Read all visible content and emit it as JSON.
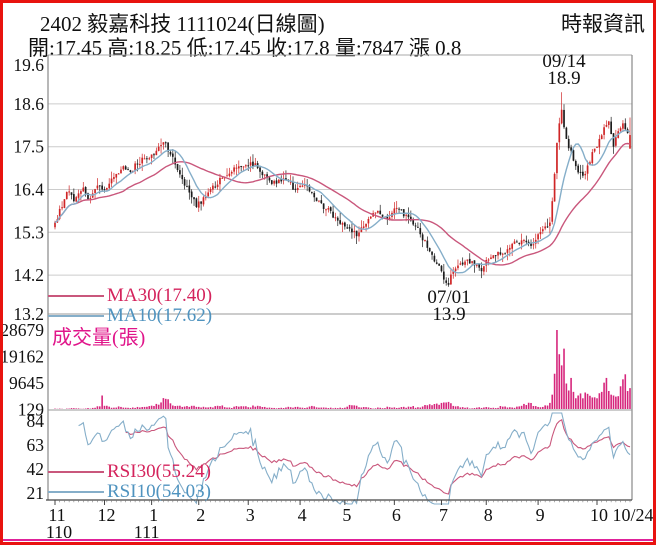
{
  "header": {
    "title": "2402 毅嘉科技 1111024(日線圖)",
    "source": "時報資訊",
    "ohlc_line": "開:17.45 高:18.25 低:17.45 收:17.8 量:7847 漲 0.8"
  },
  "legends": {
    "ma30": "MA30(17.40)",
    "ma10": "MA10(17.62)",
    "volume_title": "成交量(張)",
    "rsi30": "RSI30(55.24)",
    "rsi10": "RSI10(54.03)"
  },
  "annotations": {
    "high": {
      "date": "09/14",
      "value": "18.9"
    },
    "low": {
      "date": "07/01",
      "value": "13.9"
    }
  },
  "colors": {
    "up": "#cf2526",
    "down": "#1c1c1c",
    "ma30_line": "#c9577c",
    "ma10_line": "#85aec9",
    "volume_bar": "#d6267c",
    "pink_text": "#d4235c",
    "blue_text": "#4f93bf",
    "magenta_text": "#e0158a",
    "border": "#e8130f",
    "axis": "#888888",
    "grid": "#cccccc",
    "bottom_accent": "#e0219a"
  },
  "chart_data": {
    "type": "candlestick",
    "panels": [
      "price",
      "volume",
      "rsi"
    ],
    "title": "2402 毅嘉科技 1111024(日線圖)",
    "ohlc": {
      "open": 17.45,
      "high": 18.25,
      "low": 17.45,
      "close": 17.8,
      "volume": 7847,
      "change": 0.8
    },
    "price_axis_ticks": [
      "19.6",
      "18.6",
      "17.5",
      "16.4",
      "15.3",
      "14.2",
      "13.2"
    ],
    "price_range": [
      13.2,
      19.6
    ],
    "volume_axis_ticks": [
      28679,
      19162,
      9645,
      129
    ],
    "volume_range": [
      0,
      28679
    ],
    "rsi_axis_ticks": [
      84,
      63,
      42,
      21
    ],
    "month_labels": [
      "11",
      "12",
      "1",
      "2",
      "3",
      "4",
      "5",
      "6",
      "7",
      "8",
      "9",
      "10"
    ],
    "end_label": "10/24",
    "year_labels": [
      "110",
      "111"
    ],
    "year_label_month_slots": [
      0,
      2
    ],
    "month_start_indices": [
      0,
      21,
      41,
      61,
      82,
      104,
      123,
      144,
      164,
      183,
      205,
      230
    ],
    "num_days": 245,
    "key_high": {
      "index": 215,
      "value": 18.9,
      "date": "09/14"
    },
    "key_low": {
      "index": 167,
      "value": 13.9,
      "date": "07/01"
    },
    "close_anchors": [
      [
        0,
        15.55
      ],
      [
        2,
        15.9
      ],
      [
        4,
        16.15
      ],
      [
        6,
        16.35
      ],
      [
        8,
        16.1
      ],
      [
        10,
        16.3
      ],
      [
        12,
        16.45
      ],
      [
        14,
        16.15
      ],
      [
        16,
        16.3
      ],
      [
        18,
        16.5
      ],
      [
        20,
        16.4
      ],
      [
        23,
        16.55
      ],
      [
        26,
        16.8
      ],
      [
        29,
        17.0
      ],
      [
        32,
        16.85
      ],
      [
        35,
        17.05
      ],
      [
        38,
        17.2
      ],
      [
        41,
        17.3
      ],
      [
        44,
        17.5
      ],
      [
        47,
        17.6
      ],
      [
        49,
        17.3
      ],
      [
        52,
        16.9
      ],
      [
        55,
        16.5
      ],
      [
        58,
        16.2
      ],
      [
        60,
        15.95
      ],
      [
        63,
        16.2
      ],
      [
        67,
        16.5
      ],
      [
        71,
        16.7
      ],
      [
        75,
        16.85
      ],
      [
        79,
        17.0
      ],
      [
        83,
        17.1
      ],
      [
        86,
        16.95
      ],
      [
        90,
        16.7
      ],
      [
        94,
        16.55
      ],
      [
        98,
        16.65
      ],
      [
        102,
        16.4
      ],
      [
        105,
        16.5
      ],
      [
        108,
        16.35
      ],
      [
        111,
        16.1
      ],
      [
        114,
        15.9
      ],
      [
        117,
        15.85
      ],
      [
        120,
        15.6
      ],
      [
        123,
        15.45
      ],
      [
        126,
        15.3
      ],
      [
        128,
        15.2
      ],
      [
        131,
        15.45
      ],
      [
        134,
        15.7
      ],
      [
        137,
        15.85
      ],
      [
        140,
        15.7
      ],
      [
        143,
        15.8
      ],
      [
        146,
        15.9
      ],
      [
        149,
        15.75
      ],
      [
        152,
        15.5
      ],
      [
        155,
        15.25
      ],
      [
        158,
        14.9
      ],
      [
        161,
        14.55
      ],
      [
        164,
        14.3
      ],
      [
        166,
        14.0
      ],
      [
        167,
        13.95
      ],
      [
        169,
        14.3
      ],
      [
        172,
        14.5
      ],
      [
        175,
        14.6
      ],
      [
        178,
        14.45
      ],
      [
        181,
        14.3
      ],
      [
        184,
        14.6
      ],
      [
        187,
        14.7
      ],
      [
        190,
        14.75
      ],
      [
        193,
        14.9
      ],
      [
        196,
        15.05
      ],
      [
        199,
        15.1
      ],
      [
        202,
        14.95
      ],
      [
        205,
        15.25
      ],
      [
        208,
        15.45
      ],
      [
        210,
        15.55
      ],
      [
        211,
        16.1
      ],
      [
        212,
        16.8
      ],
      [
        213,
        17.6
      ],
      [
        214,
        18.1
      ],
      [
        215,
        18.45
      ],
      [
        216,
        18.0
      ],
      [
        217,
        17.7
      ],
      [
        219,
        17.4
      ],
      [
        221,
        17.0
      ],
      [
        223,
        16.85
      ],
      [
        225,
        16.8
      ],
      [
        227,
        17.1
      ],
      [
        229,
        17.45
      ],
      [
        231,
        17.7
      ],
      [
        233,
        18.0
      ],
      [
        235,
        18.15
      ],
      [
        237,
        17.5
      ],
      [
        239,
        17.9
      ],
      [
        241,
        18.1
      ],
      [
        242,
        17.95
      ],
      [
        243,
        17.85
      ],
      [
        244,
        17.8
      ]
    ],
    "volume_anchors": [
      [
        0,
        500
      ],
      [
        4,
        350
      ],
      [
        8,
        650
      ],
      [
        12,
        450
      ],
      [
        16,
        750
      ],
      [
        19,
        1300
      ],
      [
        20,
        5200
      ],
      [
        21,
        1500
      ],
      [
        24,
        800
      ],
      [
        28,
        1100
      ],
      [
        32,
        700
      ],
      [
        36,
        900
      ],
      [
        40,
        1400
      ],
      [
        44,
        1900
      ],
      [
        47,
        4000
      ],
      [
        50,
        1600
      ],
      [
        54,
        1100
      ],
      [
        58,
        1500
      ],
      [
        62,
        900
      ],
      [
        66,
        1100
      ],
      [
        70,
        1400
      ],
      [
        74,
        900
      ],
      [
        78,
        1200
      ],
      [
        82,
        1000
      ],
      [
        86,
        1500
      ],
      [
        90,
        800
      ],
      [
        94,
        600
      ],
      [
        98,
        900
      ],
      [
        102,
        1100
      ],
      [
        106,
        700
      ],
      [
        110,
        1300
      ],
      [
        114,
        900
      ],
      [
        118,
        600
      ],
      [
        122,
        700
      ],
      [
        126,
        1700
      ],
      [
        130,
        900
      ],
      [
        134,
        700
      ],
      [
        138,
        800
      ],
      [
        142,
        1000
      ],
      [
        146,
        800
      ],
      [
        150,
        1200
      ],
      [
        154,
        1000
      ],
      [
        158,
        1700
      ],
      [
        162,
        2300
      ],
      [
        165,
        2700
      ],
      [
        167,
        2900
      ],
      [
        170,
        1300
      ],
      [
        174,
        800
      ],
      [
        178,
        700
      ],
      [
        182,
        900
      ],
      [
        186,
        800
      ],
      [
        190,
        1200
      ],
      [
        194,
        900
      ],
      [
        198,
        1500
      ],
      [
        201,
        2600
      ],
      [
        204,
        1400
      ],
      [
        207,
        1100
      ],
      [
        209,
        1600
      ],
      [
        211,
        5500
      ],
      [
        212,
        13000
      ],
      [
        213,
        28679
      ],
      [
        214,
        20000
      ],
      [
        215,
        16000
      ],
      [
        216,
        22000
      ],
      [
        217,
        9500
      ],
      [
        218,
        7000
      ],
      [
        219,
        11500
      ],
      [
        220,
        6500
      ],
      [
        222,
        5200
      ],
      [
        224,
        4200
      ],
      [
        226,
        5800
      ],
      [
        228,
        4500
      ],
      [
        230,
        4200
      ],
      [
        232,
        6500
      ],
      [
        233,
        9800
      ],
      [
        234,
        11500
      ],
      [
        236,
        5500
      ],
      [
        238,
        4800
      ],
      [
        240,
        8500
      ],
      [
        241,
        11000
      ],
      [
        242,
        12800
      ],
      [
        243,
        6800
      ],
      [
        244,
        7847
      ]
    ],
    "ma_periods": [
      10,
      30
    ],
    "rsi_periods": [
      10,
      30
    ],
    "noise": {
      "close": 0.18,
      "wick": 0.2,
      "volume": 0.6,
      "seed": 7
    }
  }
}
